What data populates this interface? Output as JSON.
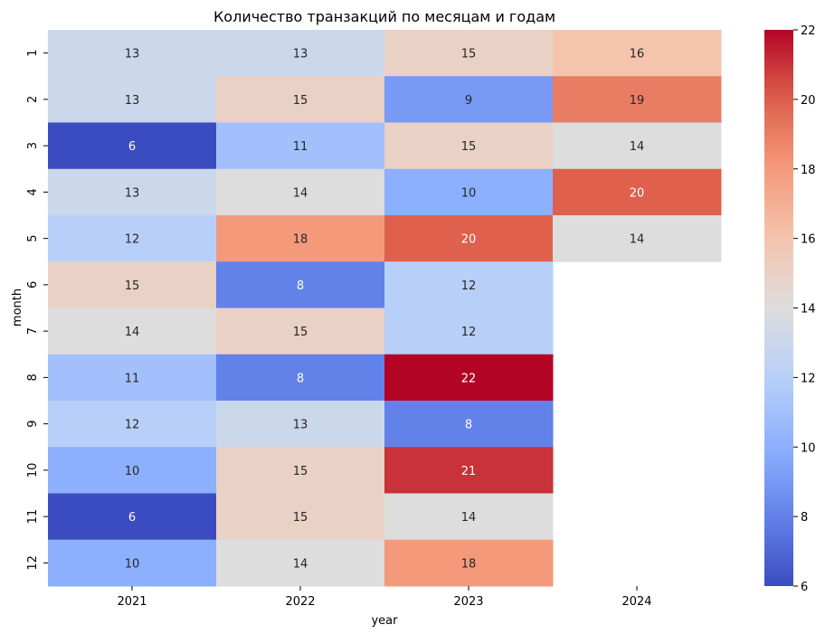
{
  "chart_data": {
    "type": "heatmap",
    "title": "Количество транзакций по месяцам и годам",
    "xlabel": "year",
    "ylabel": "month",
    "x_categories": [
      "2021",
      "2022",
      "2023",
      "2024"
    ],
    "y_categories": [
      "1",
      "2",
      "3",
      "4",
      "5",
      "6",
      "7",
      "8",
      "9",
      "10",
      "11",
      "12"
    ],
    "values": [
      [
        13,
        13,
        15,
        16
      ],
      [
        13,
        15,
        9,
        19
      ],
      [
        6,
        11,
        15,
        14
      ],
      [
        13,
        14,
        10,
        20
      ],
      [
        12,
        18,
        20,
        14
      ],
      [
        15,
        8,
        12,
        null
      ],
      [
        14,
        15,
        12,
        null
      ],
      [
        11,
        8,
        22,
        null
      ],
      [
        12,
        13,
        8,
        null
      ],
      [
        10,
        15,
        21,
        null
      ],
      [
        6,
        15,
        14,
        null
      ],
      [
        10,
        14,
        18,
        null
      ]
    ],
    "colormap": "coolwarm",
    "colorbar": {
      "vmin": 6,
      "vmax": 22,
      "ticks": [
        "6",
        "8",
        "10",
        "12",
        "14",
        "16",
        "18",
        "20",
        "22"
      ]
    },
    "annotate": true,
    "grid": false
  }
}
